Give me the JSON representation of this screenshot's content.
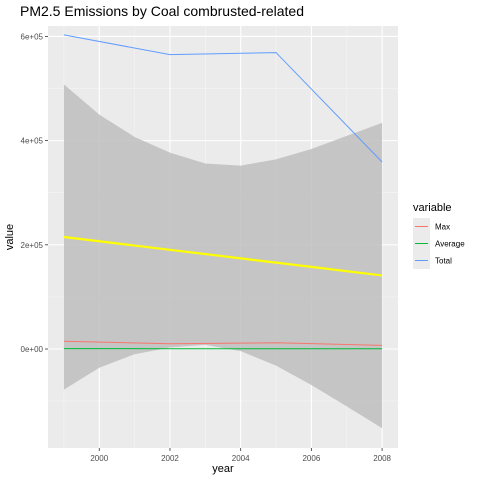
{
  "chart_data": {
    "type": "line",
    "title": "PM2.5 Emissions by Coal combrusted-related",
    "xlabel": "year",
    "ylabel": "value",
    "x": [
      1999,
      2002,
      2005,
      2008
    ],
    "xlim": [
      1998.55,
      2008.45
    ],
    "ylim": [
      -190000,
      620000
    ],
    "x_ticks": [
      {
        "value": 2000,
        "label": "2000"
      },
      {
        "value": 2002,
        "label": "2002"
      },
      {
        "value": 2004,
        "label": "2004"
      },
      {
        "value": 2006,
        "label": "2006"
      },
      {
        "value": 2008,
        "label": "2008"
      }
    ],
    "y_ticks": [
      {
        "value": 0,
        "label": "0e+00"
      },
      {
        "value": 200000,
        "label": "2e+05"
      },
      {
        "value": 400000,
        "label": "4e+05"
      },
      {
        "value": 600000,
        "label": "6e+05"
      }
    ],
    "series": [
      {
        "name": "Max",
        "color": "#f8766d",
        "values": [
          15000,
          10000,
          12000,
          7000
        ]
      },
      {
        "name": "Average",
        "color": "#00ba38",
        "values": [
          800,
          600,
          600,
          400
        ]
      },
      {
        "name": "Total",
        "color": "#619cff",
        "values": [
          603000,
          565000,
          569000,
          359000
        ]
      }
    ],
    "trend": {
      "color": "#ffff00",
      "band_color": "#bebebe",
      "x": [
        1999,
        2000,
        2001,
        2002,
        2003,
        2004,
        2005,
        2006,
        2007,
        2008
      ],
      "fit": [
        215000,
        206800,
        198600,
        190400,
        182200,
        174000,
        165800,
        157600,
        149400,
        141200
      ],
      "upper": [
        508000,
        450000,
        407000,
        377000,
        356000,
        352000,
        364000,
        384000,
        409000,
        434000
      ],
      "lower": [
        -78000,
        -36000,
        -10000,
        3000,
        8000,
        -4000,
        -32000,
        -69000,
        -110000,
        -152000
      ]
    },
    "legend": {
      "title": "variable",
      "position": "right"
    },
    "grid": true
  }
}
